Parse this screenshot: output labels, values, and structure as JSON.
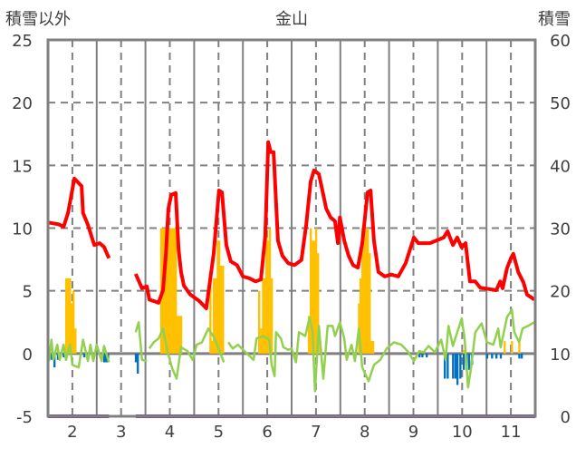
{
  "chart_data": {
    "type": "bar+line",
    "title": "金山",
    "ylabel_left": "積雪以外",
    "ylabel_right": "積雪",
    "xlim": [
      1.5,
      11.5
    ],
    "ylim_left": [
      -5,
      25
    ],
    "ylim_right": [
      0,
      60
    ],
    "x_ticks": [
      "2",
      "3",
      "4",
      "5",
      "6",
      "7",
      "8",
      "9",
      "10",
      "11"
    ],
    "y_ticks_left": [
      "25",
      "20",
      "15",
      "10",
      "5",
      "0",
      "-5"
    ],
    "y_ticks_right": [
      "60",
      "50",
      "40",
      "30",
      "20",
      "10",
      "0"
    ],
    "grid": true,
    "colors": {
      "depth": "#FF0000",
      "snowfall": "#FFC000",
      "melt": "#0070C0",
      "other": "#92D050",
      "base": "#7030A0",
      "axis": "#808080"
    },
    "series": [
      {
        "name": "snow_depth",
        "axis": "right",
        "type": "line",
        "color": "#FF0000",
        "points": [
          [
            1.5,
            30.9
          ],
          [
            1.72,
            30.6
          ],
          [
            1.82,
            30.2
          ],
          [
            1.91,
            32.4
          ],
          [
            2.04,
            37.9
          ],
          [
            2.19,
            36.7
          ],
          [
            2.22,
            32.4
          ],
          [
            2.32,
            30.5
          ],
          [
            2.45,
            27.3
          ],
          [
            2.56,
            27.6
          ],
          [
            2.65,
            27.0
          ],
          [
            2.75,
            25.2
          ],
          null,
          [
            3.3,
            22.7
          ],
          [
            3.43,
            20.4
          ],
          [
            3.53,
            20.7
          ],
          [
            3.58,
            18.6
          ],
          [
            3.77,
            18.1
          ],
          [
            3.86,
            20.1
          ],
          [
            3.92,
            25.9
          ],
          [
            3.97,
            33.1
          ],
          [
            4.03,
            35.3
          ],
          [
            4.12,
            35.6
          ],
          [
            4.18,
            26.6
          ],
          [
            4.23,
            23.0
          ],
          [
            4.29,
            20.8
          ],
          [
            4.42,
            19.4
          ],
          [
            4.6,
            18.4
          ],
          [
            4.75,
            17.2
          ],
          [
            4.9,
            25.9
          ],
          [
            5.01,
            36.0
          ],
          [
            5.07,
            35.7
          ],
          [
            5.16,
            27.3
          ],
          [
            5.25,
            24.7
          ],
          [
            5.38,
            24.1
          ],
          [
            5.5,
            22.3
          ],
          [
            5.63,
            22.0
          ],
          [
            5.76,
            21.5
          ],
          [
            5.87,
            21.8
          ],
          [
            5.96,
            28.8
          ],
          [
            6.02,
            43.7
          ],
          [
            6.07,
            42.1
          ],
          [
            6.13,
            42.1
          ],
          [
            6.22,
            28.0
          ],
          [
            6.31,
            25.6
          ],
          [
            6.43,
            24.4
          ],
          [
            6.56,
            24.1
          ],
          [
            6.7,
            24.9
          ],
          [
            6.8,
            30.5
          ],
          [
            6.89,
            37.4
          ],
          [
            6.96,
            39.2
          ],
          [
            7.06,
            38.6
          ],
          [
            7.15,
            35.3
          ],
          [
            7.21,
            33.1
          ],
          [
            7.3,
            31.7
          ],
          [
            7.39,
            31.1
          ],
          [
            7.45,
            27.6
          ],
          [
            7.49,
            31.7
          ],
          [
            7.58,
            28.0
          ],
          [
            7.67,
            25.6
          ],
          [
            7.76,
            24.1
          ],
          [
            7.86,
            23.7
          ],
          [
            7.95,
            27.6
          ],
          [
            8.06,
            35.7
          ],
          [
            8.12,
            36.0
          ],
          [
            8.19,
            28.0
          ],
          [
            8.28,
            23.0
          ],
          [
            8.41,
            22.3
          ],
          [
            8.54,
            22.6
          ],
          [
            8.69,
            22.3
          ],
          [
            8.84,
            24.4
          ],
          [
            9.01,
            28.5
          ],
          [
            9.1,
            27.6
          ],
          [
            9.34,
            27.6
          ],
          [
            9.62,
            28.5
          ],
          [
            9.7,
            29.5
          ],
          [
            9.81,
            27.3
          ],
          [
            9.9,
            28.5
          ],
          [
            9.99,
            26.9
          ],
          [
            10.07,
            27.6
          ],
          [
            10.16,
            21.5
          ],
          [
            10.27,
            21.5
          ],
          [
            10.37,
            20.5
          ],
          [
            10.7,
            20.1
          ],
          [
            10.78,
            21.5
          ],
          [
            10.83,
            20.4
          ],
          [
            10.92,
            23.6
          ],
          [
            11.0,
            25.2
          ],
          [
            11.05,
            25.9
          ],
          [
            11.15,
            23.0
          ],
          [
            11.26,
            21.3
          ],
          [
            11.33,
            19.4
          ],
          [
            11.43,
            18.9
          ],
          [
            11.48,
            18.6
          ]
        ]
      },
      {
        "name": "other_line",
        "axis": "left",
        "type": "line",
        "color": "#92D050",
        "points": [
          [
            1.52,
            -0.6
          ],
          [
            1.57,
            1.1
          ],
          [
            1.61,
            -0.5
          ],
          [
            1.69,
            0.7
          ],
          [
            1.74,
            -0.5
          ],
          [
            1.82,
            0.7
          ],
          [
            1.87,
            -0.5
          ],
          [
            1.95,
            0.7
          ],
          [
            2.0,
            -0.9
          ],
          [
            2.13,
            -1.1
          ],
          [
            2.22,
            1.1
          ],
          [
            2.32,
            -0.6
          ],
          [
            2.37,
            0.7
          ],
          [
            2.43,
            -0.6
          ],
          [
            2.5,
            0.7
          ],
          [
            2.6,
            -0.6
          ],
          [
            2.65,
            0.6
          ],
          [
            2.75,
            -0.7
          ],
          null,
          [
            3.3,
            1.7
          ],
          [
            3.36,
            2.5
          ],
          [
            3.43,
            -0.5
          ],
          [
            3.53,
            -0.6
          ],
          null,
          [
            3.58,
            0.4
          ],
          [
            3.67,
            0.9
          ],
          [
            3.77,
            1.2
          ],
          [
            3.86,
            2.0
          ],
          [
            3.95,
            0.2
          ],
          [
            4.05,
            -1.2
          ],
          [
            4.14,
            -2.0
          ],
          [
            4.23,
            0.5
          ],
          [
            4.36,
            0.2
          ],
          [
            4.47,
            -0.5
          ],
          [
            4.55,
            0.7
          ],
          [
            4.66,
            0.9
          ],
          [
            4.79,
            2.0
          ],
          [
            4.92,
            1.2
          ],
          [
            5.11,
            -0.7
          ],
          null,
          [
            5.2,
            0.9
          ],
          [
            5.29,
            0.4
          ],
          [
            5.4,
            0.7
          ],
          [
            5.53,
            0.2
          ],
          [
            5.72,
            -0.5
          ],
          [
            5.78,
            1.2
          ],
          [
            5.91,
            1.4
          ],
          [
            6.04,
            1.1
          ],
          [
            6.09,
            -0.9
          ],
          [
            6.15,
            -1.8
          ],
          [
            6.18,
            1.7
          ],
          [
            6.28,
            1.2
          ],
          [
            6.33,
            0.5
          ],
          [
            6.43,
            0.3
          ],
          [
            6.5,
            0.4
          ],
          [
            6.59,
            -0.7
          ],
          [
            6.65,
            1.7
          ],
          [
            6.78,
            1.4
          ],
          [
            6.87,
            2.9
          ],
          [
            6.93,
            1.7
          ],
          [
            6.98,
            -3.0
          ],
          [
            7.06,
            2.2
          ],
          [
            7.15,
            -2.0
          ],
          [
            7.24,
            2.2
          ],
          [
            7.34,
            2.2
          ],
          [
            7.39,
            1.4
          ],
          [
            7.49,
            2.5
          ],
          [
            7.58,
            1.2
          ],
          [
            7.63,
            -0.5
          ],
          [
            7.73,
            0.7
          ],
          [
            7.8,
            -0.6
          ],
          [
            7.88,
            2.0
          ],
          [
            7.95,
            -1.1
          ],
          [
            8.08,
            -2.2
          ],
          [
            8.19,
            -0.9
          ],
          [
            8.32,
            -0.5
          ],
          [
            8.45,
            0.4
          ],
          [
            8.6,
            0.9
          ],
          [
            8.75,
            0.7
          ],
          [
            8.88,
            0.2
          ],
          [
            9.01,
            -0.6
          ],
          [
            9.12,
            0.2
          ],
          [
            9.21,
            0.1
          ],
          [
            9.31,
            0.6
          ],
          [
            9.44,
            0.1
          ],
          [
            9.57,
            1.1
          ],
          [
            9.66,
            -0.5
          ],
          [
            9.72,
            2.2
          ],
          [
            9.81,
            0.6
          ],
          [
            9.9,
            1.7
          ],
          [
            9.99,
            2.8
          ],
          [
            10.05,
            1.2
          ],
          [
            10.12,
            -2.7
          ],
          [
            10.18,
            -1.2
          ],
          [
            10.27,
            1.7
          ],
          [
            10.4,
            2.4
          ],
          [
            10.51,
            0.9
          ],
          [
            10.64,
            0.7
          ],
          [
            10.74,
            2.0
          ],
          [
            10.79,
            0.5
          ],
          [
            10.92,
            2.9
          ],
          [
            11.02,
            3.5
          ],
          [
            11.07,
            1.7
          ],
          [
            11.17,
            0.9
          ],
          [
            11.24,
            2.0
          ],
          [
            11.35,
            2.2
          ],
          [
            11.48,
            2.5
          ]
        ]
      },
      {
        "name": "snowfall_bars",
        "axis": "left",
        "type": "bar",
        "color": "#FFC000",
        "points": [
          [
            1.87,
            6
          ],
          [
            1.91,
            6
          ],
          [
            1.95,
            6
          ],
          [
            1.98,
            4
          ],
          [
            2.02,
            5
          ],
          [
            2.06,
            2
          ],
          [
            3.82,
            10
          ],
          [
            3.86,
            10
          ],
          [
            3.9,
            10
          ],
          [
            3.93,
            10
          ],
          [
            3.97,
            10
          ],
          [
            4.01,
            10
          ],
          [
            4.05,
            10
          ],
          [
            4.08,
            10
          ],
          [
            4.12,
            10
          ],
          [
            4.16,
            3
          ],
          [
            4.2,
            3
          ],
          [
            4.23,
            3
          ],
          [
            4.83,
            6
          ],
          [
            4.86,
            1
          ],
          [
            4.9,
            6
          ],
          [
            4.94,
            6
          ],
          [
            4.98,
            9
          ],
          [
            5.01,
            9
          ],
          [
            5.05,
            7
          ],
          [
            5.09,
            7
          ],
          [
            5.83,
            5
          ],
          [
            5.87,
            2
          ],
          [
            5.91,
            6
          ],
          [
            5.94,
            6
          ],
          [
            5.98,
            10
          ],
          [
            6.02,
            9
          ],
          [
            6.05,
            10
          ],
          [
            6.09,
            6
          ],
          [
            6.85,
            3
          ],
          [
            6.89,
            10
          ],
          [
            6.93,
            9
          ],
          [
            6.96,
            9
          ],
          [
            7.0,
            10
          ],
          [
            7.04,
            8
          ],
          [
            7.08,
            1
          ],
          [
            7.88,
            4
          ],
          [
            7.91,
            6
          ],
          [
            7.95,
            10
          ],
          [
            7.99,
            10
          ],
          [
            8.02,
            10
          ],
          [
            8.06,
            10
          ],
          [
            8.1,
            8
          ],
          [
            8.14,
            1
          ],
          [
            8.17,
            1
          ],
          [
            10.03,
            0.3
          ],
          [
            10.87,
            1
          ],
          [
            11.02,
            1
          ],
          [
            11.17,
            1
          ]
        ]
      },
      {
        "name": "melt_bars",
        "axis": "left",
        "type": "bar",
        "color": "#0070C0",
        "points": [
          [
            1.57,
            -0.5
          ],
          [
            1.63,
            -1.1
          ],
          [
            1.7,
            -0.5
          ],
          [
            1.82,
            -0.3
          ],
          [
            2.24,
            -0.3
          ],
          [
            2.3,
            -0.3
          ],
          [
            2.65,
            -0.7
          ],
          [
            2.69,
            -0.7
          ],
          [
            2.73,
            -0.7
          ],
          [
            3.3,
            -0.7
          ],
          [
            3.34,
            -1.6
          ],
          [
            9.12,
            -0.3
          ],
          [
            9.18,
            -0.3
          ],
          [
            9.27,
            -0.3
          ],
          [
            9.64,
            -2
          ],
          [
            9.7,
            -2
          ],
          [
            9.81,
            -2
          ],
          [
            9.86,
            -2
          ],
          [
            9.9,
            -2.5
          ],
          [
            9.96,
            -2
          ],
          [
            10.03,
            -1.3
          ],
          [
            10.09,
            -1.3
          ],
          [
            10.14,
            -1.3
          ],
          [
            10.2,
            -0.9
          ],
          [
            10.51,
            -0.4
          ],
          [
            10.61,
            -0.4
          ],
          [
            10.7,
            -0.4
          ],
          [
            10.79,
            -0.4
          ],
          [
            11.17,
            -0.4
          ],
          [
            11.22,
            -0.4
          ]
        ]
      },
      {
        "name": "base_line",
        "axis": "right",
        "type": "line",
        "color": "#7030A0",
        "points": [
          [
            1.5,
            0
          ],
          [
            2.75,
            0
          ],
          null,
          [
            3.3,
            0
          ],
          [
            11.5,
            0
          ]
        ]
      }
    ]
  }
}
